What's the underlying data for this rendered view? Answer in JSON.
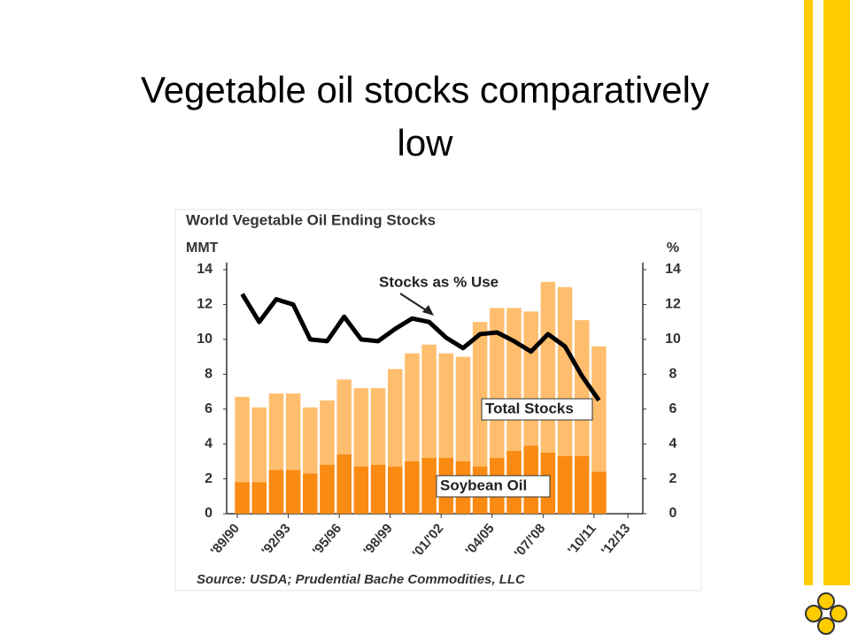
{
  "slide_title": "Vegetable oil stocks comparatively low",
  "chart_data": {
    "type": "bar",
    "title": "World Vegetable Oil Ending Stocks",
    "y_label": "MMT",
    "y2_label": "%",
    "source": "Source: USDA; Prudential Bache Commodities, LLC",
    "annotations": [
      "Stocks as % Use",
      "Total Stocks",
      "Soybean Oil"
    ],
    "categories": [
      "'89/90",
      null,
      null,
      "'92/93",
      null,
      null,
      "'95/96",
      null,
      null,
      "'98/99",
      null,
      null,
      "'01/'02",
      null,
      null,
      "'04/05",
      null,
      null,
      "'07/'08",
      null,
      null,
      "'10/11",
      null,
      "'12/13"
    ],
    "series": [
      {
        "name": "Total Stocks",
        "color": "#ffbe6e",
        "values": [
          6.7,
          6.1,
          6.9,
          6.9,
          6.1,
          6.5,
          7.7,
          7.2,
          7.2,
          8.3,
          9.2,
          9.7,
          9.2,
          9.0,
          11.0,
          11.8,
          11.8,
          11.6,
          13.3,
          13.0,
          11.1,
          9.6,
          null,
          null
        ]
      },
      {
        "name": "Soybean Oil",
        "color": "#f98a12",
        "values": [
          1.8,
          1.8,
          2.5,
          2.5,
          2.3,
          2.8,
          3.4,
          2.7,
          2.8,
          2.7,
          3.0,
          3.2,
          3.2,
          3.0,
          2.7,
          3.2,
          3.6,
          3.9,
          3.5,
          3.3,
          3.3,
          2.4,
          null,
          null
        ]
      },
      {
        "name": "Stocks as % Use",
        "type": "line",
        "axis": "y2",
        "color": "#000000",
        "values": [
          12.6,
          11.0,
          12.3,
          12.0,
          10.0,
          9.9,
          11.3,
          10.0,
          9.9,
          10.6,
          11.2,
          11.0,
          10.1,
          9.5,
          10.3,
          10.4,
          9.9,
          9.3,
          10.3,
          9.6,
          7.9,
          6.5,
          null,
          null
        ]
      }
    ],
    "ylim": [
      0,
      14
    ],
    "yticks": [
      0,
      2,
      4,
      6,
      8,
      10,
      12,
      14
    ],
    "y2lim": [
      0,
      14
    ],
    "y2ticks": [
      0,
      2,
      4,
      6,
      8,
      10,
      12,
      14
    ]
  }
}
